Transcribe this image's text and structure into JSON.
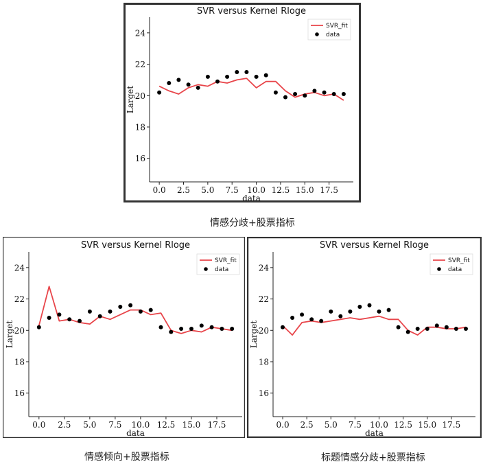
{
  "colors": {
    "fit": "#e8454a",
    "data": "#000000",
    "frame": "#333333",
    "axis": "#222222"
  },
  "chart_data": [
    {
      "type": "line",
      "title": "SVR versus Kernel Rloge",
      "xlabel": "data",
      "ylabel": "Larget",
      "caption": "情感分歧+股票指标",
      "xlim": [
        -1,
        20
      ],
      "ylim": [
        14.5,
        25
      ],
      "xticks": [
        0,
        2.5,
        5,
        7.5,
        10,
        12.5,
        15,
        17.5
      ],
      "xtick_labels": [
        "0.0",
        "2.5",
        "5.0",
        "7.5",
        "10.0",
        "12.5",
        "15.0",
        "17.5"
      ],
      "yticks": [
        16,
        18,
        20,
        22,
        24
      ],
      "ytick_labels": [
        "16",
        "18",
        "20",
        "22",
        "24"
      ],
      "legend": {
        "position": "top-right",
        "entries": [
          "SVR_fit",
          "data"
        ]
      },
      "series": [
        {
          "name": "SVR_fit",
          "kind": "line",
          "x": [
            0,
            1,
            2,
            3,
            4,
            5,
            6,
            7,
            8,
            9,
            10,
            11,
            12,
            13,
            14,
            15,
            16,
            17,
            18,
            19
          ],
          "y": [
            20.6,
            20.3,
            20.1,
            20.5,
            20.7,
            20.6,
            20.9,
            20.8,
            21.0,
            21.1,
            20.5,
            20.9,
            20.9,
            20.3,
            19.9,
            20.1,
            20.2,
            20.0,
            20.1,
            19.7
          ]
        },
        {
          "name": "data",
          "kind": "scatter",
          "x": [
            0,
            1,
            2,
            3,
            4,
            5,
            6,
            7,
            8,
            9,
            10,
            11,
            12,
            13,
            14,
            15,
            16,
            17,
            18,
            19
          ],
          "y": [
            20.2,
            20.8,
            21.0,
            20.7,
            20.5,
            21.2,
            20.9,
            21.2,
            21.5,
            21.5,
            21.2,
            21.3,
            20.2,
            19.9,
            20.1,
            20.0,
            20.3,
            20.2,
            20.1,
            20.1
          ]
        }
      ]
    },
    {
      "type": "line",
      "title": "SVR versus Kernel Rloge",
      "xlabel": "data",
      "ylabel": "Larget",
      "caption": "情感倾向+股票指标",
      "xlim": [
        -1,
        20
      ],
      "ylim": [
        14.5,
        25
      ],
      "xticks": [
        0,
        2.5,
        5,
        7.5,
        10,
        12.5,
        15,
        17.5
      ],
      "xtick_labels": [
        "0.0",
        "2.5",
        "5.0",
        "7.5",
        "10.0",
        "12.5",
        "15.0",
        "17.5"
      ],
      "yticks": [
        16,
        18,
        20,
        22,
        24
      ],
      "ytick_labels": [
        "16",
        "18",
        "20",
        "22",
        "24"
      ],
      "legend": {
        "position": "top-right",
        "entries": [
          "SVR_fit",
          "data"
        ]
      },
      "series": [
        {
          "name": "SVR_fit",
          "kind": "line",
          "x": [
            0,
            1,
            2,
            3,
            4,
            5,
            6,
            7,
            8,
            9,
            10,
            11,
            12,
            13,
            14,
            15,
            16,
            17,
            18,
            19
          ],
          "y": [
            20.3,
            22.8,
            20.6,
            20.7,
            20.5,
            20.4,
            20.9,
            20.7,
            21.0,
            21.3,
            21.3,
            21.0,
            21.1,
            20.0,
            19.8,
            20.0,
            19.9,
            20.2,
            20.1,
            20.0
          ]
        },
        {
          "name": "data",
          "kind": "scatter",
          "x": [
            0,
            1,
            2,
            3,
            4,
            5,
            6,
            7,
            8,
            9,
            10,
            11,
            12,
            13,
            14,
            15,
            16,
            17,
            18,
            19
          ],
          "y": [
            20.2,
            20.8,
            21.0,
            20.7,
            20.6,
            21.2,
            20.9,
            21.2,
            21.5,
            21.6,
            21.2,
            21.3,
            20.2,
            19.9,
            20.1,
            20.1,
            20.3,
            20.2,
            20.1,
            20.1
          ]
        }
      ]
    },
    {
      "type": "line",
      "title": "SVR versus Kernel Rloge",
      "xlabel": "data",
      "ylabel": "Larget",
      "caption": "标题情感分歧+股票指标",
      "xlim": [
        -1,
        20
      ],
      "ylim": [
        14.5,
        25
      ],
      "xticks": [
        0,
        2.5,
        5,
        7.5,
        10,
        12.5,
        15,
        17.5
      ],
      "xtick_labels": [
        "0.0",
        "2.5",
        "5.0",
        "7.5",
        "10.0",
        "12.5",
        "15.0",
        "17.5"
      ],
      "yticks": [
        16,
        18,
        20,
        22,
        24
      ],
      "ytick_labels": [
        "16",
        "18",
        "20",
        "22",
        "24"
      ],
      "legend": {
        "position": "top-right",
        "entries": [
          "SVR_fit",
          "data"
        ]
      },
      "series": [
        {
          "name": "SVR_fit",
          "kind": "line",
          "x": [
            0,
            1,
            2,
            3,
            4,
            5,
            6,
            7,
            8,
            9,
            10,
            11,
            12,
            13,
            14,
            15,
            16,
            17,
            18,
            19
          ],
          "y": [
            20.3,
            19.7,
            20.5,
            20.6,
            20.5,
            20.6,
            20.7,
            20.8,
            20.7,
            20.8,
            20.9,
            20.7,
            20.7,
            20.0,
            19.7,
            20.2,
            20.2,
            20.1,
            20.1,
            20.2
          ]
        },
        {
          "name": "data",
          "kind": "scatter",
          "x": [
            0,
            1,
            2,
            3,
            4,
            5,
            6,
            7,
            8,
            9,
            10,
            11,
            12,
            13,
            14,
            15,
            16,
            17,
            18,
            19
          ],
          "y": [
            20.2,
            20.8,
            21.0,
            20.7,
            20.6,
            21.2,
            20.9,
            21.2,
            21.5,
            21.6,
            21.2,
            21.3,
            20.2,
            19.9,
            20.1,
            20.1,
            20.3,
            20.2,
            20.1,
            20.1
          ]
        }
      ]
    }
  ]
}
